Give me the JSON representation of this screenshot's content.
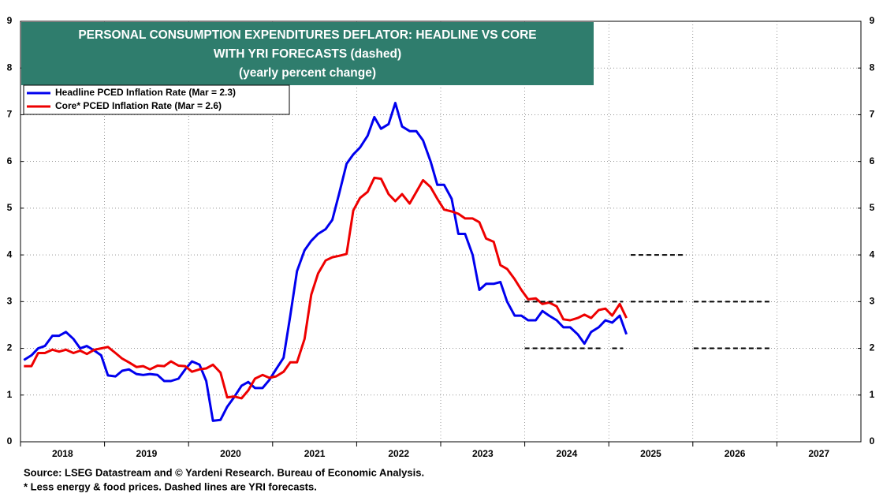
{
  "chart_data": {
    "type": "line",
    "title": [
      "PERSONAL CONSUMPTION EXPENDITURES DEFLATOR: HEADLINE VS CORE",
      "WITH YRI FORECASTS (dashed)",
      "(yearly percent change)"
    ],
    "notes": [
      "Source: LSEG Datastream and © Yardeni Research. Bureau of Economic Analysis.",
      "* Less energy & food prices. Dashed lines are YRI forecasts."
    ],
    "xlim": [
      2018,
      2028
    ],
    "xticks": [
      2018,
      2019,
      2020,
      2021,
      2022,
      2023,
      2024,
      2025,
      2026,
      2027
    ],
    "ylim": [
      0,
      9
    ],
    "yticks": [
      0,
      1,
      2,
      3,
      4,
      5,
      6,
      7,
      8,
      9
    ],
    "grid": true,
    "legend": "top-left",
    "x": [
      2018.04,
      2018.13,
      2018.21,
      2018.29,
      2018.38,
      2018.46,
      2018.54,
      2018.63,
      2018.71,
      2018.79,
      2018.88,
      2018.96,
      2019.04,
      2019.13,
      2019.21,
      2019.29,
      2019.38,
      2019.46,
      2019.54,
      2019.63,
      2019.71,
      2019.79,
      2019.88,
      2019.96,
      2020.04,
      2020.13,
      2020.21,
      2020.29,
      2020.38,
      2020.46,
      2020.54,
      2020.63,
      2020.71,
      2020.79,
      2020.88,
      2020.96,
      2021.04,
      2021.13,
      2021.21,
      2021.29,
      2021.38,
      2021.46,
      2021.54,
      2021.63,
      2021.71,
      2021.79,
      2021.88,
      2021.96,
      2022.04,
      2022.13,
      2022.21,
      2022.29,
      2022.38,
      2022.46,
      2022.54,
      2022.63,
      2022.71,
      2022.79,
      2022.88,
      2022.96,
      2023.04,
      2023.13,
      2023.21,
      2023.29,
      2023.38,
      2023.46,
      2023.54,
      2023.63,
      2023.71,
      2023.79,
      2023.88,
      2023.96,
      2024.04,
      2024.13,
      2024.21,
      2024.29,
      2024.38,
      2024.46,
      2024.54,
      2024.63,
      2024.71,
      2024.79,
      2024.88,
      2024.96,
      2025.04,
      2025.13,
      2025.21
    ],
    "series": [
      {
        "name": "Headline PCED Inflation Rate  (Mar = 2.3)",
        "color": "#0000ee",
        "values": [
          1.75,
          1.85,
          2.0,
          2.05,
          2.27,
          2.27,
          2.35,
          2.2,
          2.0,
          2.05,
          1.95,
          1.85,
          1.42,
          1.4,
          1.52,
          1.55,
          1.45,
          1.43,
          1.45,
          1.43,
          1.3,
          1.3,
          1.35,
          1.55,
          1.72,
          1.65,
          1.3,
          0.45,
          0.47,
          0.75,
          0.95,
          1.2,
          1.28,
          1.15,
          1.15,
          1.32,
          1.55,
          1.8,
          2.7,
          3.65,
          4.1,
          4.3,
          4.45,
          4.55,
          4.75,
          5.3,
          5.95,
          6.15,
          6.3,
          6.55,
          6.95,
          6.7,
          6.8,
          7.25,
          6.75,
          6.65,
          6.65,
          6.45,
          6.0,
          5.5,
          5.5,
          5.2,
          4.45,
          4.45,
          4.0,
          3.25,
          3.38,
          3.38,
          3.42,
          3.0,
          2.7,
          2.7,
          2.6,
          2.6,
          2.8,
          2.7,
          2.6,
          2.45,
          2.45,
          2.3,
          2.1,
          2.35,
          2.45,
          2.6,
          2.55,
          2.7,
          2.3
        ]
      },
      {
        "name": "Core* PCED Inflation Rate (Mar = 2.6)",
        "color": "#ee0000",
        "values": [
          1.62,
          1.62,
          1.9,
          1.9,
          1.97,
          1.93,
          1.97,
          1.9,
          1.95,
          1.88,
          1.97,
          2.0,
          2.03,
          1.9,
          1.78,
          1.7,
          1.6,
          1.62,
          1.55,
          1.63,
          1.62,
          1.72,
          1.63,
          1.62,
          1.5,
          1.55,
          1.57,
          1.65,
          1.48,
          0.95,
          0.97,
          0.93,
          1.1,
          1.35,
          1.43,
          1.37,
          1.4,
          1.5,
          1.7,
          1.7,
          2.2,
          3.15,
          3.6,
          3.88,
          3.95,
          3.98,
          4.02,
          4.95,
          5.22,
          5.35,
          5.65,
          5.63,
          5.3,
          5.15,
          5.3,
          5.1,
          5.35,
          5.6,
          5.45,
          5.2,
          4.97,
          4.93,
          4.88,
          4.78,
          4.78,
          4.7,
          4.35,
          4.28,
          3.78,
          3.7,
          3.48,
          3.25,
          3.05,
          3.07,
          2.95,
          2.98,
          2.9,
          2.62,
          2.6,
          2.65,
          2.72,
          2.65,
          2.82,
          2.85,
          2.7,
          2.95,
          2.65
        ]
      }
    ],
    "forecasts": [
      {
        "x": [
          2024.0,
          2024.93
        ],
        "y": 3
      },
      {
        "x": [
          2024.0,
          2024.93
        ],
        "y": 2
      },
      {
        "x": [
          2025.04,
          2025.17
        ],
        "y": 3
      },
      {
        "x": [
          2025.04,
          2025.17
        ],
        "y": 2
      },
      {
        "x": [
          2025.26,
          2025.92
        ],
        "y": 4
      },
      {
        "x": [
          2025.26,
          2025.92
        ],
        "y": 3
      },
      {
        "x": [
          2026.01,
          2026.93
        ],
        "y": 3
      },
      {
        "x": [
          2026.01,
          2026.93
        ],
        "y": 2
      }
    ]
  }
}
